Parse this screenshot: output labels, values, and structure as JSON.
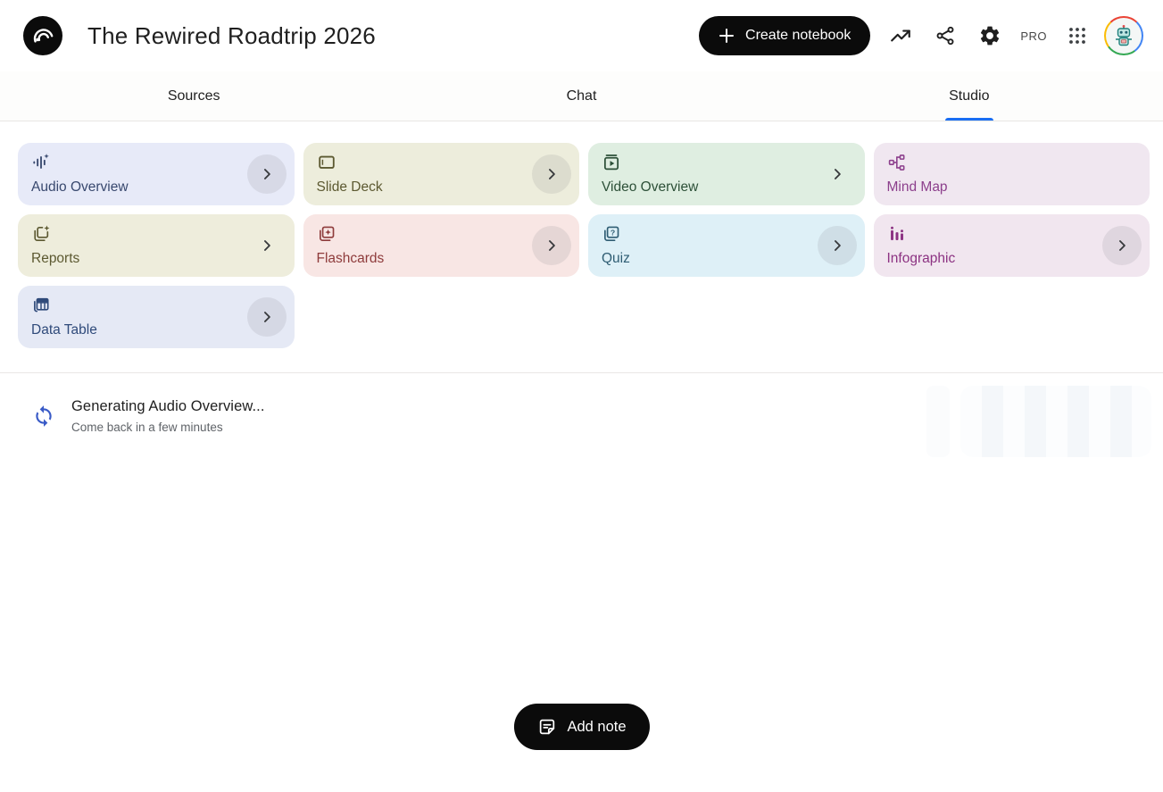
{
  "header": {
    "title": "The Rewired Roadtrip 2026",
    "create_notebook": "Create notebook",
    "pro_badge": "PRO",
    "icons": [
      "notebooklm-logo",
      "plus-icon",
      "trending-up-icon",
      "share-icon",
      "settings-gear-icon",
      "apps-grid-icon",
      "robot-avatar"
    ]
  },
  "tabs": [
    {
      "id": "sources",
      "label": "Sources",
      "active": false
    },
    {
      "id": "chat",
      "label": "Chat",
      "active": false
    },
    {
      "id": "studio",
      "label": "Studio",
      "active": true
    }
  ],
  "studio": {
    "cards": [
      {
        "id": "audio-overview",
        "label": "Audio Overview",
        "icon": "audio-waveform-icon",
        "bg": "#e7eaf8",
        "accent": "#38486e",
        "chevron": "circle"
      },
      {
        "id": "slide-deck",
        "label": "Slide Deck",
        "icon": "slide-deck-icon",
        "bg": "#ededdc",
        "accent": "#5c5931",
        "chevron": "circle"
      },
      {
        "id": "video-overview",
        "label": "Video Overview",
        "icon": "video-overview-icon",
        "bg": "#dfeee1",
        "accent": "#2d5038",
        "chevron": "plain"
      },
      {
        "id": "mind-map",
        "label": "Mind Map",
        "icon": "mind-map-icon",
        "bg": "#f0e7f0",
        "accent": "#8c3f8c",
        "chevron": "none"
      },
      {
        "id": "reports",
        "label": "Reports",
        "icon": "reports-icon",
        "bg": "#eeeddc",
        "accent": "#5c5931",
        "chevron": "plain"
      },
      {
        "id": "flashcards",
        "label": "Flashcards",
        "icon": "flashcards-icon",
        "bg": "#f8e6e4",
        "accent": "#8e3b3b",
        "chevron": "circle"
      },
      {
        "id": "quiz",
        "label": "Quiz",
        "icon": "quiz-icon",
        "bg": "#def0f7",
        "accent": "#2f5d73",
        "chevron": "circle"
      },
      {
        "id": "infographic",
        "label": "Infographic",
        "icon": "infographic-icon",
        "bg": "#f1e6ef",
        "accent": "#8c3282",
        "chevron": "circle"
      },
      {
        "id": "data-table",
        "label": "Data Table",
        "icon": "data-table-icon",
        "bg": "#e5e9f5",
        "accent": "#2f4a7a",
        "chevron": "circle"
      }
    ]
  },
  "generating": {
    "icon": "sync-spinner-icon",
    "title": "Generating Audio Overview...",
    "subtitle": "Come back in a few minutes",
    "spinner_color": "#3a5bc7"
  },
  "footer": {
    "add_note": "Add note",
    "icon": "note-icon"
  },
  "colors": {
    "tab_accent": "#1a6ef3",
    "button_black": "#0b0b0b"
  }
}
